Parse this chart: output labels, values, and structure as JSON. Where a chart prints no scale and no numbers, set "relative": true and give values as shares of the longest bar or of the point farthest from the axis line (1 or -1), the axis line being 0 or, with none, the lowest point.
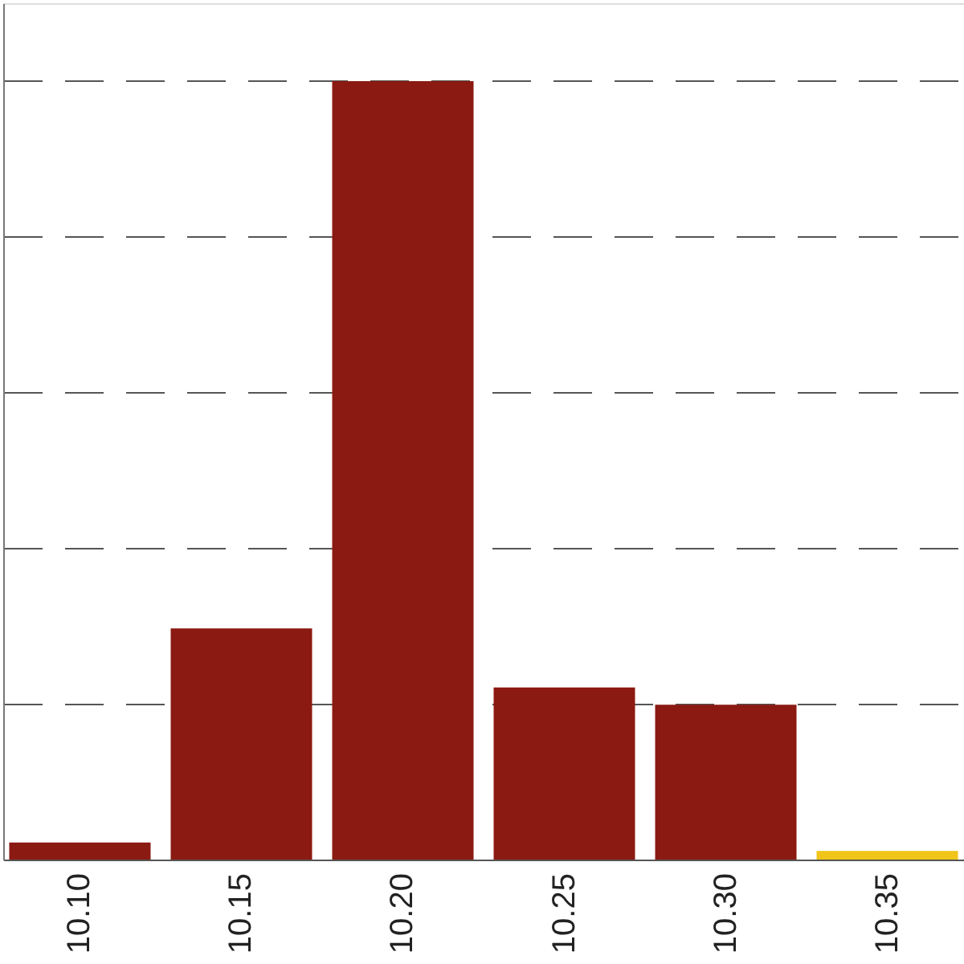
{
  "chart_data": {
    "type": "bar",
    "relative": true,
    "categories": [
      "10.10",
      "10.15",
      "10.20",
      "10.25",
      "10.30",
      "10.35"
    ],
    "values": [
      0.022,
      0.297,
      1,
      0.221,
      0.199,
      0.011
    ],
    "colors": [
      "#8b1a12",
      "#8b1a12",
      "#8b1a12",
      "#8b1a12",
      "#8b1a12",
      "#f0c419"
    ],
    "grid": "y"
  }
}
